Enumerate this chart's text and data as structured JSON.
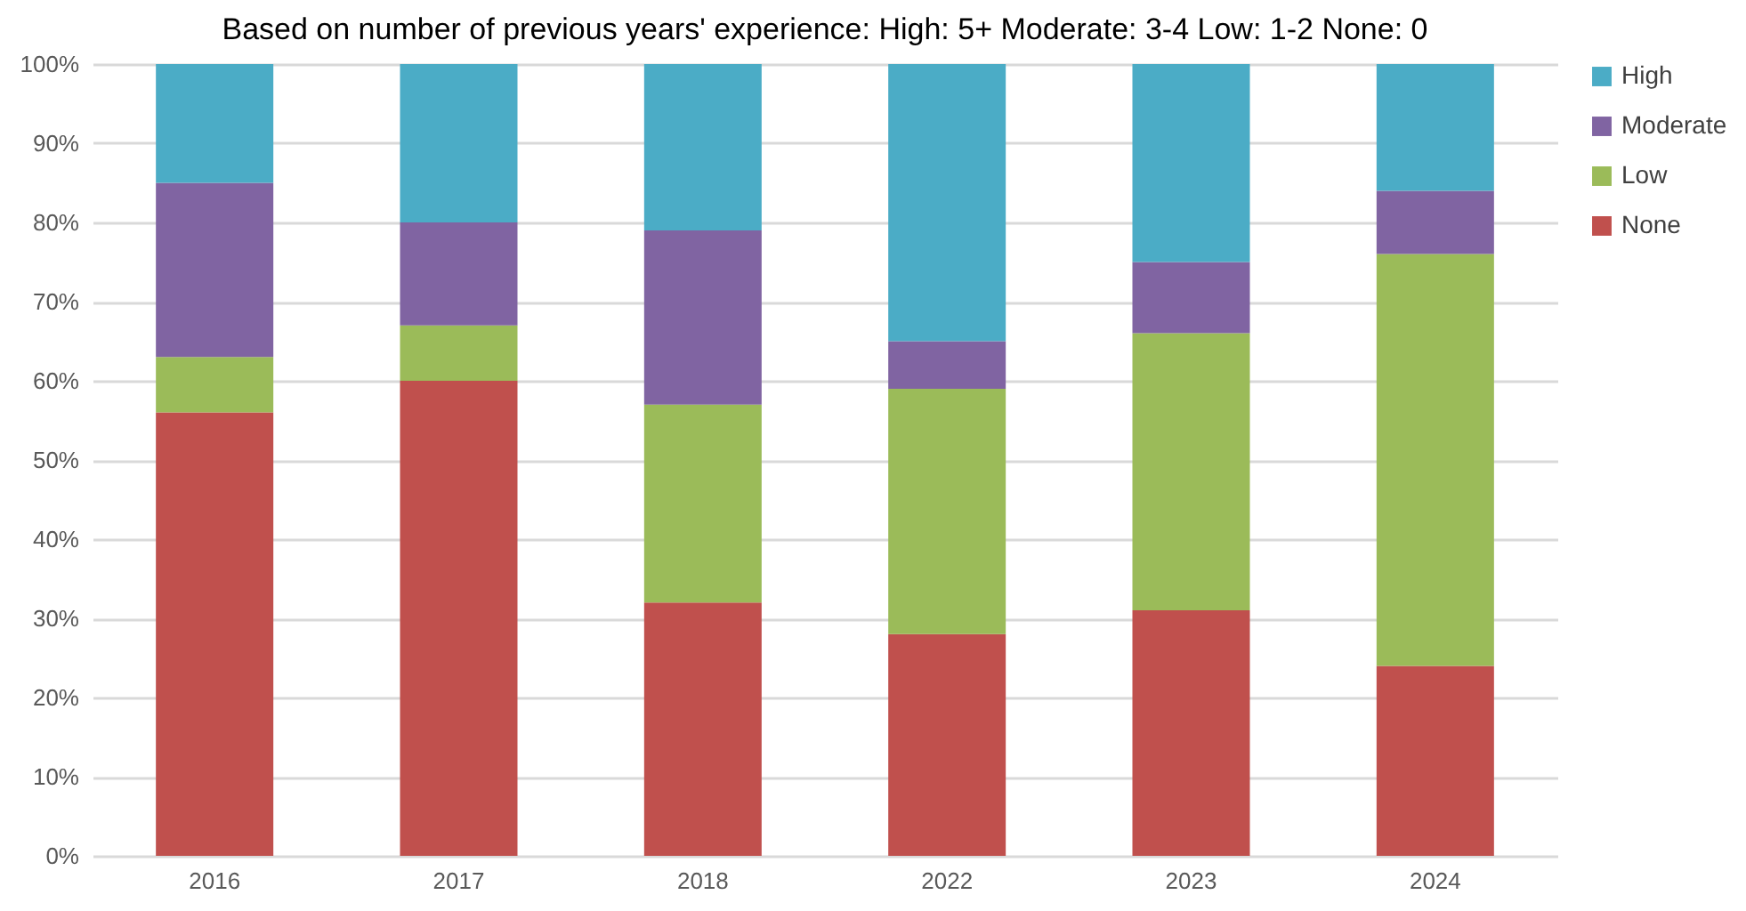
{
  "chart_data": {
    "type": "bar",
    "stacked": true,
    "title": "Based on number of previous years' experience: High: 5+  Moderate: 3-4  Low: 1-2  None: 0",
    "categories": [
      "2016",
      "2017",
      "2018",
      "2022",
      "2023",
      "2024"
    ],
    "series": [
      {
        "name": "None",
        "color": "#c0504d",
        "values": [
          56,
          60,
          32,
          28,
          31,
          24
        ]
      },
      {
        "name": "Low",
        "color": "#9bbb59",
        "values": [
          7,
          7,
          25,
          31,
          35,
          52
        ]
      },
      {
        "name": "Moderate",
        "color": "#8064a2",
        "values": [
          22,
          13,
          22,
          6,
          9,
          8
        ]
      },
      {
        "name": "High",
        "color": "#4bacc6",
        "values": [
          15,
          20,
          21,
          35,
          25,
          16
        ]
      }
    ],
    "ylim": [
      0,
      100
    ],
    "yticks": [
      {
        "value": 0,
        "label": "0%"
      },
      {
        "value": 10,
        "label": "10%"
      },
      {
        "value": 20,
        "label": "20%"
      },
      {
        "value": 30,
        "label": "30%"
      },
      {
        "value": 40,
        "label": "40%"
      },
      {
        "value": 50,
        "label": "50%"
      },
      {
        "value": 60,
        "label": "60%"
      },
      {
        "value": 70,
        "label": "70%"
      },
      {
        "value": 80,
        "label": "80%"
      },
      {
        "value": 90,
        "label": "90%"
      },
      {
        "value": 100,
        "label": "100%"
      }
    ],
    "grid": "y",
    "legend": "right"
  }
}
